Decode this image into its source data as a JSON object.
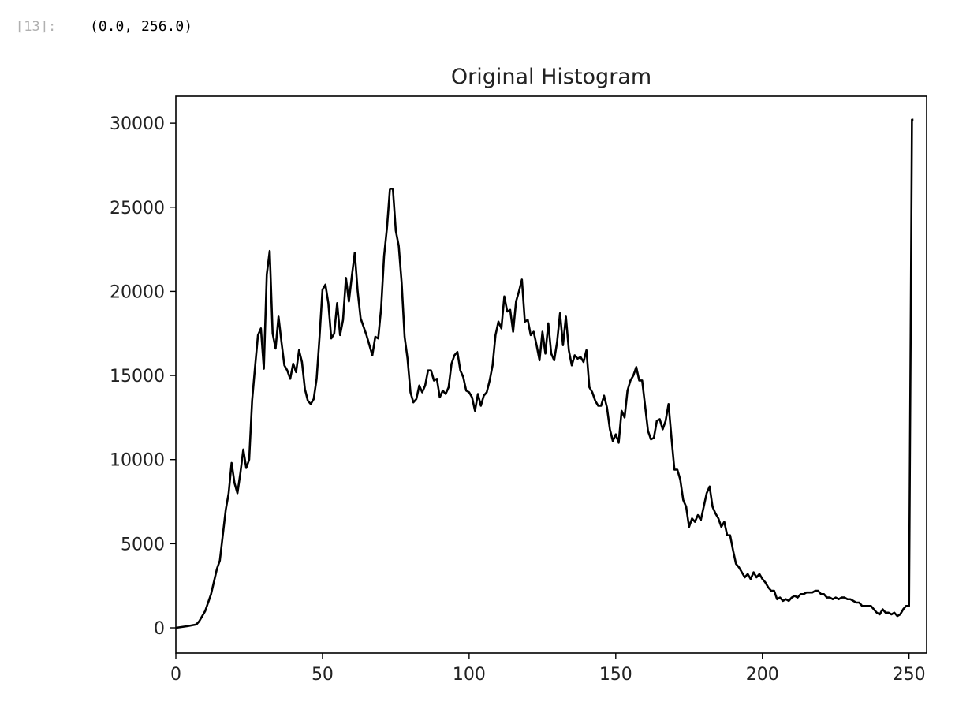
{
  "cell": {
    "prompt": "[13]:",
    "output": "(0.0, 256.0)"
  },
  "chart_data": {
    "type": "line",
    "title": "Original Histogram",
    "xlabel": "",
    "ylabel": "",
    "xlim": [
      0,
      256
    ],
    "ylim": [
      -1500,
      31600
    ],
    "x_ticks": [
      0,
      50,
      100,
      150,
      200,
      250
    ],
    "y_ticks": [
      0,
      5000,
      10000,
      15000,
      20000,
      25000,
      30000
    ],
    "grid": false,
    "line_color": "#000000",
    "series": [
      {
        "points": [
          [
            0,
            0
          ],
          [
            4,
            100
          ],
          [
            7,
            200
          ],
          [
            8,
            400
          ],
          [
            10,
            1000
          ],
          [
            12,
            2000
          ],
          [
            14,
            3500
          ],
          [
            15,
            4000
          ],
          [
            16,
            5500
          ],
          [
            17,
            7000
          ],
          [
            18,
            8000
          ],
          [
            19,
            9800
          ],
          [
            20,
            8600
          ],
          [
            21,
            8000
          ],
          [
            22,
            9200
          ],
          [
            23,
            10600
          ],
          [
            24,
            9500
          ],
          [
            25,
            10000
          ],
          [
            26,
            13500
          ],
          [
            27,
            15500
          ],
          [
            28,
            17400
          ],
          [
            29,
            17800
          ],
          [
            30,
            15400
          ],
          [
            31,
            21000
          ],
          [
            32,
            22400
          ],
          [
            33,
            17500
          ],
          [
            34,
            16600
          ],
          [
            35,
            18500
          ],
          [
            36,
            17000
          ],
          [
            37,
            15600
          ],
          [
            38,
            15300
          ],
          [
            39,
            14800
          ],
          [
            40,
            15700
          ],
          [
            41,
            15200
          ],
          [
            42,
            16500
          ],
          [
            43,
            15800
          ],
          [
            44,
            14200
          ],
          [
            45,
            13500
          ],
          [
            46,
            13300
          ],
          [
            47,
            13600
          ],
          [
            48,
            14800
          ],
          [
            49,
            17300
          ],
          [
            50,
            20100
          ],
          [
            51,
            20400
          ],
          [
            52,
            19300
          ],
          [
            53,
            17200
          ],
          [
            54,
            17500
          ],
          [
            55,
            19300
          ],
          [
            56,
            17400
          ],
          [
            57,
            18300
          ],
          [
            58,
            20800
          ],
          [
            59,
            19400
          ],
          [
            60,
            20900
          ],
          [
            61,
            22300
          ],
          [
            62,
            20000
          ],
          [
            63,
            18400
          ],
          [
            64,
            17900
          ],
          [
            65,
            17400
          ],
          [
            66,
            16800
          ],
          [
            67,
            16200
          ],
          [
            68,
            17300
          ],
          [
            69,
            17200
          ],
          [
            70,
            19000
          ],
          [
            71,
            22100
          ],
          [
            72,
            23800
          ],
          [
            73,
            26100
          ],
          [
            74,
            26100
          ],
          [
            75,
            23600
          ],
          [
            76,
            22700
          ],
          [
            77,
            20500
          ],
          [
            78,
            17300
          ],
          [
            79,
            16000
          ],
          [
            80,
            14000
          ],
          [
            81,
            13400
          ],
          [
            82,
            13600
          ],
          [
            83,
            14400
          ],
          [
            84,
            14000
          ],
          [
            85,
            14400
          ],
          [
            86,
            15300
          ],
          [
            87,
            15300
          ],
          [
            88,
            14700
          ],
          [
            89,
            14800
          ],
          [
            90,
            13700
          ],
          [
            91,
            14100
          ],
          [
            92,
            13900
          ],
          [
            93,
            14300
          ],
          [
            94,
            15700
          ],
          [
            95,
            16200
          ],
          [
            96,
            16400
          ],
          [
            97,
            15300
          ],
          [
            98,
            14900
          ],
          [
            99,
            14100
          ],
          [
            100,
            14000
          ],
          [
            101,
            13700
          ],
          [
            102,
            12900
          ],
          [
            103,
            13900
          ],
          [
            104,
            13200
          ],
          [
            105,
            13800
          ],
          [
            106,
            14000
          ],
          [
            107,
            14700
          ],
          [
            108,
            15600
          ],
          [
            109,
            17400
          ],
          [
            110,
            18200
          ],
          [
            111,
            17800
          ],
          [
            112,
            19700
          ],
          [
            113,
            18800
          ],
          [
            114,
            18900
          ],
          [
            115,
            17600
          ],
          [
            116,
            19400
          ],
          [
            117,
            20000
          ],
          [
            118,
            20700
          ],
          [
            119,
            18200
          ],
          [
            120,
            18300
          ],
          [
            121,
            17400
          ],
          [
            122,
            17600
          ],
          [
            123,
            16800
          ],
          [
            124,
            15900
          ],
          [
            125,
            17600
          ],
          [
            126,
            16300
          ],
          [
            127,
            18100
          ],
          [
            128,
            16300
          ],
          [
            129,
            15900
          ],
          [
            130,
            17000
          ],
          [
            131,
            18700
          ],
          [
            132,
            16800
          ],
          [
            133,
            18500
          ],
          [
            134,
            16500
          ],
          [
            135,
            15600
          ],
          [
            136,
            16200
          ],
          [
            137,
            16000
          ],
          [
            138,
            16100
          ],
          [
            139,
            15800
          ],
          [
            140,
            16500
          ],
          [
            141,
            14300
          ],
          [
            142,
            14000
          ],
          [
            143,
            13500
          ],
          [
            144,
            13200
          ],
          [
            145,
            13200
          ],
          [
            146,
            13800
          ],
          [
            147,
            13100
          ],
          [
            148,
            11800
          ],
          [
            149,
            11100
          ],
          [
            150,
            11500
          ],
          [
            151,
            11000
          ],
          [
            152,
            12900
          ],
          [
            153,
            12500
          ],
          [
            154,
            14100
          ],
          [
            155,
            14700
          ],
          [
            156,
            15000
          ],
          [
            157,
            15500
          ],
          [
            158,
            14700
          ],
          [
            159,
            14700
          ],
          [
            160,
            13200
          ],
          [
            161,
            11700
          ],
          [
            162,
            11200
          ],
          [
            163,
            11300
          ],
          [
            164,
            12300
          ],
          [
            165,
            12400
          ],
          [
            166,
            11800
          ],
          [
            167,
            12300
          ],
          [
            168,
            13300
          ],
          [
            169,
            11300
          ],
          [
            170,
            9400
          ],
          [
            171,
            9400
          ],
          [
            172,
            8800
          ],
          [
            173,
            7600
          ],
          [
            174,
            7200
          ],
          [
            175,
            6000
          ],
          [
            176,
            6500
          ],
          [
            177,
            6300
          ],
          [
            178,
            6700
          ],
          [
            179,
            6400
          ],
          [
            180,
            7200
          ],
          [
            181,
            8000
          ],
          [
            182,
            8400
          ],
          [
            183,
            7200
          ],
          [
            184,
            6800
          ],
          [
            185,
            6500
          ],
          [
            186,
            6000
          ],
          [
            187,
            6300
          ],
          [
            188,
            5500
          ],
          [
            189,
            5500
          ],
          [
            190,
            4600
          ],
          [
            191,
            3800
          ],
          [
            192,
            3600
          ],
          [
            193,
            3300
          ],
          [
            194,
            3000
          ],
          [
            195,
            3200
          ],
          [
            196,
            2900
          ],
          [
            197,
            3300
          ],
          [
            198,
            3000
          ],
          [
            199,
            3200
          ],
          [
            200,
            2900
          ],
          [
            201,
            2700
          ],
          [
            202,
            2400
          ],
          [
            203,
            2200
          ],
          [
            204,
            2200
          ],
          [
            205,
            1700
          ],
          [
            206,
            1800
          ],
          [
            207,
            1600
          ],
          [
            208,
            1700
          ],
          [
            209,
            1600
          ],
          [
            210,
            1800
          ],
          [
            211,
            1900
          ],
          [
            212,
            1800
          ],
          [
            213,
            2000
          ],
          [
            214,
            2000
          ],
          [
            215,
            2100
          ],
          [
            216,
            2100
          ],
          [
            217,
            2100
          ],
          [
            218,
            2200
          ],
          [
            219,
            2200
          ],
          [
            220,
            2000
          ],
          [
            221,
            2000
          ],
          [
            222,
            1800
          ],
          [
            223,
            1800
          ],
          [
            224,
            1700
          ],
          [
            225,
            1800
          ],
          [
            226,
            1700
          ],
          [
            227,
            1800
          ],
          [
            228,
            1800
          ],
          [
            229,
            1700
          ],
          [
            230,
            1700
          ],
          [
            231,
            1600
          ],
          [
            232,
            1500
          ],
          [
            233,
            1500
          ],
          [
            234,
            1300
          ],
          [
            235,
            1300
          ],
          [
            236,
            1300
          ],
          [
            237,
            1300
          ],
          [
            238,
            1100
          ],
          [
            239,
            900
          ],
          [
            240,
            800
          ],
          [
            241,
            1100
          ],
          [
            242,
            900
          ],
          [
            243,
            900
          ],
          [
            244,
            800
          ],
          [
            245,
            900
          ],
          [
            246,
            700
          ],
          [
            247,
            800
          ],
          [
            248,
            1100
          ],
          [
            249,
            1300
          ],
          [
            250,
            1300
          ],
          [
            251,
            30200
          ],
          [
            251.5,
            30200
          ]
        ]
      }
    ]
  }
}
